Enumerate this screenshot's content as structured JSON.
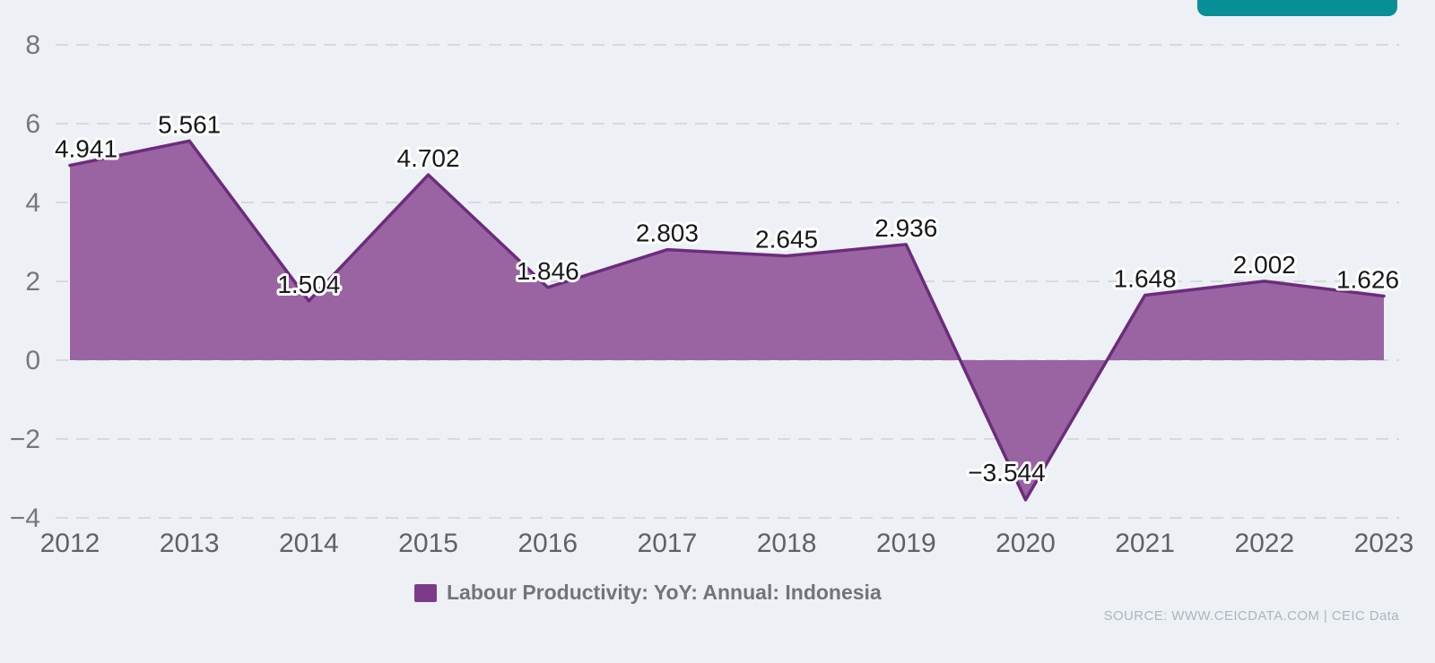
{
  "page": {
    "background_color": "#EDF1F6"
  },
  "header": {
    "cta_button": {
      "visible_text": "",
      "color": "#088F96",
      "note": "button cut off by top edge"
    }
  },
  "legend": {
    "label": "Labour Productivity: YoY: Annual: Indonesia",
    "swatch_color": "#7D3A8B"
  },
  "footer": {
    "source_text": "SOURCE: WWW.CEICDATA.COM | CEIC Data"
  },
  "chart_data": {
    "type": "area",
    "title": "",
    "xlabel": "",
    "ylabel": "",
    "categories": [
      "2012",
      "2013",
      "2014",
      "2015",
      "2016",
      "2017",
      "2018",
      "2019",
      "2020",
      "2021",
      "2022",
      "2023"
    ],
    "series": [
      {
        "name": "Labour Productivity: YoY: Annual: Indonesia",
        "values": [
          4.941,
          5.561,
          1.504,
          4.702,
          1.846,
          2.803,
          2.645,
          2.936,
          -3.544,
          1.648,
          2.002,
          1.626
        ]
      }
    ],
    "ylim": [
      -4,
      8
    ],
    "yticks": [
      8,
      6,
      4,
      2,
      0,
      -2,
      -4
    ],
    "grid": "horizontal-dashed",
    "data_labels": "3 decimal places, black with white halo",
    "legend_position": "bottom-center",
    "label_offsets": {
      "0": {
        "dx": 18
      },
      "8": {
        "dx": -21,
        "dy": -12
      },
      "11": {
        "dx": -18
      }
    },
    "colors": {
      "area_fill": "#9A64A3",
      "line": "#6C2C7C",
      "gridline": "#D6DADF",
      "x_tick_labels": "#5E6266",
      "y_tick_labels": "#74787C"
    }
  }
}
